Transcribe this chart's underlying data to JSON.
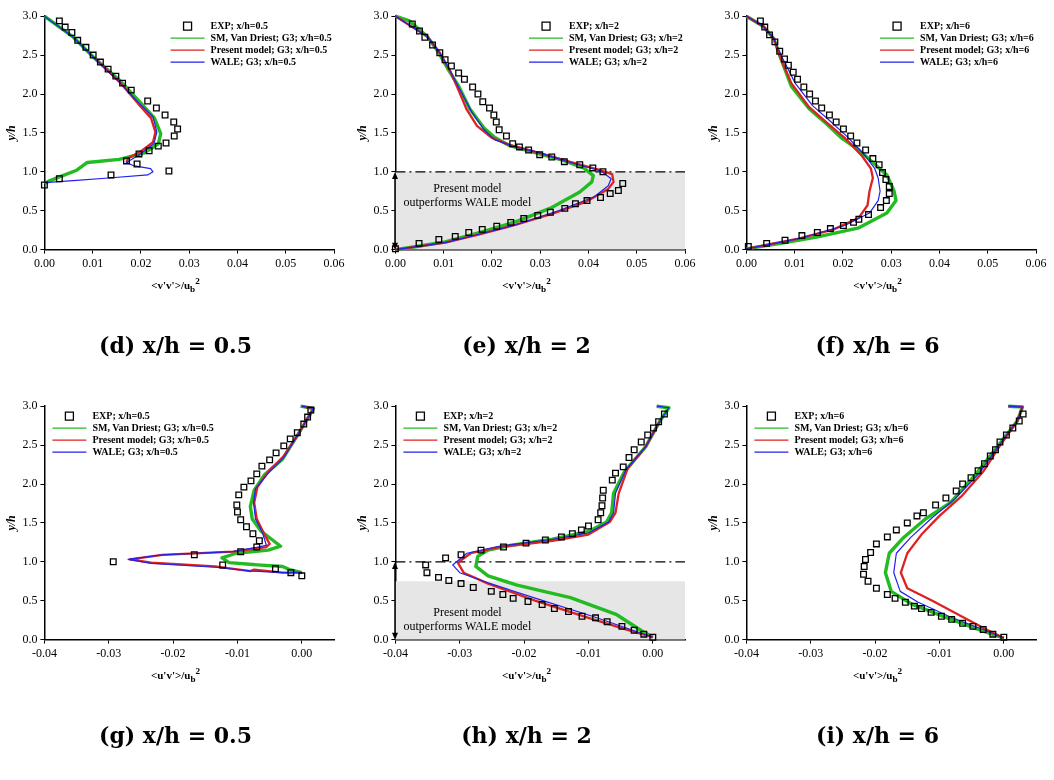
{
  "chart_data": [
    {
      "type": "line",
      "title": "(d) x/h = 0.5",
      "xlabel": "<v'v'>/u$_{b}$$^{2}$",
      "ylabel": "y/h",
      "xlim": [
        0,
        0.06
      ],
      "xticks": [
        {
          "value": 0,
          "label": "0.00"
        },
        {
          "value": 0.01,
          "label": "0.01"
        },
        {
          "value": 0.02,
          "label": "0.02"
        },
        {
          "value": 0.03,
          "label": "0.03"
        },
        {
          "value": 0.04,
          "label": "0.04"
        },
        {
          "value": 0.05,
          "label": "0.05"
        },
        {
          "value": 0.06,
          "label": "0.06"
        }
      ],
      "ylim": [
        0,
        3
      ],
      "yticks": [
        {
          "value": 0,
          "label": "0.0"
        },
        {
          "value": 0.5,
          "label": "0.5"
        },
        {
          "value": 1,
          "label": "1.0"
        },
        {
          "value": 1.5,
          "label": "1.5"
        },
        {
          "value": 2,
          "label": "2.0"
        },
        {
          "value": 2.5,
          "label": "2.5"
        },
        {
          "value": 3,
          "label": "3.0"
        }
      ],
      "legend": "top right",
      "series": [
        {
          "name": "EXP; x/h=0.5",
          "type": "scatter",
          "marker": "square",
          "color": "#000000",
          "x": [
            0.0031,
            0.0043,
            0.0057,
            0.0069,
            0.0086,
            0.0101,
            0.0116,
            0.0132,
            0.0148,
            0.0162,
            0.018,
            0.0214,
            0.0232,
            0.025,
            0.0268,
            0.0276,
            0.0269,
            0.0252,
            0.0236,
            0.0217,
            0.0196,
            0.017,
            0.0192,
            0.0258,
            0.0138,
            0.0031,
            0
          ],
          "values": [
            2.94,
            2.86,
            2.79,
            2.69,
            2.6,
            2.5,
            2.41,
            2.32,
            2.23,
            2.14,
            2.05,
            1.91,
            1.82,
            1.73,
            1.64,
            1.55,
            1.46,
            1.37,
            1.33,
            1.27,
            1.23,
            1.14,
            1.1,
            1.01,
            0.96,
            0.91,
            0.83
          ]
        },
        {
          "name": "SM, Van Driest; G3; x/h=0.5",
          "color": "#22bb22",
          "x": [
            0,
            0.006,
            0.0104,
            0.0155,
            0.0199,
            0.0228,
            0.0241,
            0.0236,
            0.0206,
            0.0155,
            0.0089,
            0.0067,
            0.0038,
            0.0009,
            0
          ],
          "values": [
            3,
            2.73,
            2.46,
            2.18,
            1.89,
            1.69,
            1.49,
            1.36,
            1.24,
            1.16,
            1.12,
            1.02,
            0.95,
            0.88,
            0.85
          ]
        },
        {
          "name": "Present model; G3; x/h=0.5",
          "color": "#dd2222",
          "x": [
            0.0104,
            0.0155,
            0.0195,
            0.0221,
            0.023,
            0.0225,
            0.0199,
            0.0173,
            0.017
          ],
          "values": [
            2.46,
            2.16,
            1.87,
            1.69,
            1.51,
            1.38,
            1.26,
            1.17,
            1.12
          ]
        },
        {
          "name": "WALE; G3; x/h=0.5",
          "color": "#2222ee",
          "x": [
            0,
            0.006,
            0.0104,
            0.0154,
            0.0195,
            0.0225,
            0.0233,
            0.0227,
            0.0192,
            0.017,
            0.0184,
            0.022,
            0.0225,
            0.0214,
            0.0133,
            0.0067,
            0.0023,
            0
          ],
          "values": [
            3,
            2.73,
            2.46,
            2.16,
            1.89,
            1.71,
            1.51,
            1.36,
            1.2,
            1.12,
            1.08,
            1.04,
            1,
            0.96,
            0.92,
            0.89,
            0.87,
            0.86
          ]
        }
      ]
    },
    {
      "type": "line",
      "title": "(e) x/h = 2",
      "xlabel": "<v'v'>/u$_{b}$$^{2}$",
      "ylabel": "y/h",
      "xlim": [
        0,
        0.06
      ],
      "xticks": [
        {
          "value": 0,
          "label": "0.00"
        },
        {
          "value": 0.01,
          "label": "0.01"
        },
        {
          "value": 0.02,
          "label": "0.02"
        },
        {
          "value": 0.03,
          "label": "0.03"
        },
        {
          "value": 0.04,
          "label": "0.04"
        },
        {
          "value": 0.05,
          "label": "0.05"
        },
        {
          "value": 0.06,
          "label": "0.06"
        }
      ],
      "ylim": [
        0,
        3
      ],
      "yticks": [
        {
          "value": 0,
          "label": "0.0"
        },
        {
          "value": 0.5,
          "label": "0.5"
        },
        {
          "value": 1,
          "label": "1.0"
        },
        {
          "value": 1.5,
          "label": "1.5"
        },
        {
          "value": 2,
          "label": "2.0"
        },
        {
          "value": 2.5,
          "label": "2.5"
        },
        {
          "value": 3,
          "label": "3.0"
        }
      ],
      "legend": "top right",
      "ref_lines": [
        {
          "axis": "y",
          "value": 1,
          "color": "#000000",
          "line_style": "dashed"
        }
      ],
      "bands": [
        {
          "axis": "y",
          "from": 0,
          "to": 1,
          "label": "Present model outperforms WALE model",
          "color": "#e6e6e6"
        }
      ],
      "series": [
        {
          "name": "EXP; x/h=2",
          "type": "scatter",
          "marker": "square",
          "color": "#000000",
          "x": [
            0.0035,
            0.005,
            0.0061,
            0.0077,
            0.0092,
            0.0103,
            0.0116,
            0.0131,
            0.0143,
            0.016,
            0.0171,
            0.0181,
            0.0195,
            0.0204,
            0.0209,
            0.0215,
            0.023,
            0.0243,
            0.0257,
            0.0276,
            0.0299,
            0.0324,
            0.035,
            0.0382,
            0.0409,
            0.043,
            0.0471,
            0.0462,
            0.0445,
            0.0425,
            0.0397,
            0.0373,
            0.0351,
            0.0321,
            0.0295,
            0.0266,
            0.0239,
            0.021,
            0.018,
            0.0152,
            0.0124,
            0.009,
            0.0049,
            0
          ],
          "values": [
            2.9,
            2.81,
            2.73,
            2.63,
            2.53,
            2.44,
            2.36,
            2.27,
            2.19,
            2.09,
            2,
            1.9,
            1.82,
            1.73,
            1.64,
            1.54,
            1.46,
            1.36,
            1.32,
            1.28,
            1.22,
            1.19,
            1.13,
            1.09,
            1.05,
            1,
            0.85,
            0.76,
            0.72,
            0.67,
            0.63,
            0.59,
            0.53,
            0.48,
            0.44,
            0.4,
            0.35,
            0.3,
            0.26,
            0.22,
            0.17,
            0.13,
            0.08,
            0.01
          ]
        },
        {
          "name": "SM, Van Driest; G3; x/h=2",
          "color": "#22bb22",
          "x": [
            0,
            0.0029,
            0.0066,
            0.0088,
            0.011,
            0.0132,
            0.0154,
            0.0184,
            0.0206,
            0.0235,
            0.0287,
            0.0346,
            0.039,
            0.041,
            0.0407,
            0.0382,
            0.0324,
            0.025,
            0.0176,
            0.0103,
            0.0044,
            0
          ],
          "values": [
            3,
            2.94,
            2.74,
            2.55,
            2.31,
            2.09,
            1.81,
            1.56,
            1.44,
            1.34,
            1.25,
            1.15,
            1.05,
            0.95,
            0.87,
            0.74,
            0.54,
            0.36,
            0.22,
            0.1,
            0.04,
            0
          ]
        },
        {
          "name": "Present model; G3; x/h=2",
          "color": "#dd2222",
          "x": [
            0,
            0.0066,
            0.0092,
            0.0114,
            0.0132,
            0.0147,
            0.0169,
            0.0199,
            0.0235,
            0.0294,
            0.036,
            0.0419,
            0.0449,
            0.0452,
            0.0441,
            0.0397,
            0.0324,
            0.025,
            0.0176,
            0.0103,
            0
          ],
          "values": [
            3,
            2.74,
            2.53,
            2.29,
            2.03,
            1.81,
            1.59,
            1.44,
            1.35,
            1.25,
            1.13,
            1.03,
            0.97,
            0.87,
            0.78,
            0.62,
            0.46,
            0.32,
            0.2,
            0.09,
            0
          ]
        },
        {
          "name": "WALE; G3; x/h=2",
          "color": "#2222ee",
          "x": [
            0,
            0.0066,
            0.0092,
            0.0114,
            0.0136,
            0.0158,
            0.0184,
            0.0206,
            0.0243,
            0.0301,
            0.0368,
            0.0426,
            0.0447,
            0.0441,
            0.0412,
            0.0338,
            0.025,
            0.0176,
            0.0103,
            0
          ],
          "values": [
            3,
            2.74,
            2.53,
            2.29,
            2.03,
            1.77,
            1.54,
            1.41,
            1.33,
            1.24,
            1.11,
            1.01,
            0.91,
            0.82,
            0.68,
            0.5,
            0.32,
            0.2,
            0.09,
            0
          ]
        }
      ]
    },
    {
      "type": "line",
      "title": "(f) x/h = 6",
      "xlabel": "<v'v'>/u$_{b}$$^{2}$",
      "ylabel": "y/h",
      "xlim": [
        0,
        0.06
      ],
      "xticks": [
        {
          "value": 0,
          "label": "0.00"
        },
        {
          "value": 0.01,
          "label": "0.01"
        },
        {
          "value": 0.02,
          "label": "0.02"
        },
        {
          "value": 0.03,
          "label": "0.03"
        },
        {
          "value": 0.04,
          "label": "0.04"
        },
        {
          "value": 0.05,
          "label": "0.05"
        },
        {
          "value": 0.06,
          "label": "0.06"
        }
      ],
      "ylim": [
        0,
        3
      ],
      "yticks": [
        {
          "value": 0,
          "label": "0.0"
        },
        {
          "value": 0.5,
          "label": "0.5"
        },
        {
          "value": 1,
          "label": "1.0"
        },
        {
          "value": 1.5,
          "label": "1.5"
        },
        {
          "value": 2,
          "label": "2.0"
        },
        {
          "value": 2.5,
          "label": "2.5"
        },
        {
          "value": 3,
          "label": "3.0"
        }
      ],
      "legend": "top right",
      "series": [
        {
          "name": "EXP; x/h=6",
          "type": "scatter",
          "marker": "square",
          "color": "#000000",
          "x": [
            0.0029,
            0.0038,
            0.0048,
            0.0059,
            0.0069,
            0.0079,
            0.0087,
            0.0097,
            0.0106,
            0.0119,
            0.0131,
            0.0143,
            0.0156,
            0.0172,
            0.0186,
            0.0201,
            0.0216,
            0.0229,
            0.0247,
            0.0262,
            0.0275,
            0.0282,
            0.0289,
            0.0296,
            0.0296,
            0.029,
            0.0278,
            0.0253,
            0.0233,
            0.0222,
            0.0201,
            0.0174,
            0.0147,
            0.0115,
            0.008,
            0.0042,
            0.0004
          ],
          "values": [
            2.94,
            2.86,
            2.76,
            2.67,
            2.55,
            2.45,
            2.37,
            2.28,
            2.19,
            2.09,
            2,
            1.91,
            1.82,
            1.73,
            1.64,
            1.55,
            1.46,
            1.37,
            1.28,
            1.17,
            1.09,
            0.99,
            0.9,
            0.81,
            0.72,
            0.63,
            0.54,
            0.45,
            0.39,
            0.35,
            0.31,
            0.27,
            0.22,
            0.18,
            0.12,
            0.08,
            0.04
          ]
        },
        {
          "name": "SM, Van Driest; G3; x/h=6",
          "color": "#22bb22",
          "x": [
            0,
            0.0035,
            0.0057,
            0.0071,
            0.0093,
            0.013,
            0.0167,
            0.0196,
            0.0233,
            0.0262,
            0.0291,
            0.0306,
            0.031,
            0.0291,
            0.0233,
            0.0145,
            0.0071,
            0
          ],
          "values": [
            3,
            2.87,
            2.71,
            2.46,
            2.1,
            1.81,
            1.61,
            1.44,
            1.28,
            1.12,
            0.96,
            0.75,
            0.63,
            0.47,
            0.28,
            0.16,
            0.08,
            0.01
          ]
        },
        {
          "name": "Present model; G3; x/h=6",
          "color": "#dd2222",
          "x": [
            0,
            0.0035,
            0.0057,
            0.0071,
            0.0093,
            0.013,
            0.0167,
            0.0203,
            0.024,
            0.0258,
            0.0262,
            0.0255,
            0.0251,
            0.0233,
            0.0181,
            0.0108,
            0
          ],
          "values": [
            3,
            2.87,
            2.71,
            2.46,
            2.14,
            1.83,
            1.63,
            1.44,
            1.2,
            1.04,
            0.92,
            0.75,
            0.57,
            0.41,
            0.26,
            0.14,
            0.01
          ]
        },
        {
          "name": "WALE; G3; x/h=6",
          "color": "#2222ee",
          "x": [
            0,
            0.0035,
            0.0057,
            0.0075,
            0.0101,
            0.0137,
            0.0174,
            0.0211,
            0.0247,
            0.0266,
            0.0273,
            0.0277,
            0.0273,
            0.0255,
            0.0204,
            0.0108,
            0
          ],
          "values": [
            3,
            2.87,
            2.71,
            2.46,
            2.14,
            1.85,
            1.65,
            1.44,
            1.2,
            1.04,
            0.92,
            0.75,
            0.63,
            0.47,
            0.31,
            0.14,
            0.01
          ]
        }
      ]
    },
    {
      "type": "line",
      "title": "(g) x/h = 0.5",
      "xlabel": "<u'v'>/u$_{b}$$^{2}$",
      "ylabel": "y/h",
      "xlim": [
        -0.04,
        0.005
      ],
      "xticks": [
        {
          "value": -0.04,
          "label": "-0.04"
        },
        {
          "value": -0.03,
          "label": "-0.03"
        },
        {
          "value": -0.02,
          "label": "-0.02"
        },
        {
          "value": -0.01,
          "label": "-0.01"
        },
        {
          "value": 0,
          "label": "0.00"
        }
      ],
      "ylim": [
        0,
        3
      ],
      "yticks": [
        {
          "value": 0,
          "label": "0.0"
        },
        {
          "value": 0.5,
          "label": "0.5"
        },
        {
          "value": 1,
          "label": "1.0"
        },
        {
          "value": 1.5,
          "label": "1.5"
        },
        {
          "value": 2,
          "label": "2.0"
        },
        {
          "value": 2.5,
          "label": "2.5"
        },
        {
          "value": 3,
          "label": "3.0"
        }
      ],
      "legend": "top left",
      "series": [
        {
          "name": "EXP; x/h=0.5",
          "type": "scatter",
          "marker": "square",
          "color": "#000000",
          "x": [
            0.0014,
            0.0009,
            0.0003,
            -0.0007,
            -0.0018,
            -0.0028,
            -0.004,
            -0.005,
            -0.0062,
            -0.007,
            -0.0079,
            -0.009,
            -0.0098,
            -0.0101,
            -0.01,
            -0.0095,
            -0.0086,
            -0.0076,
            -0.0066,
            -0.007,
            -0.0095,
            -0.0167,
            -0.0293,
            -0.0123,
            -0.0041,
            -0.0017,
            0
          ],
          "values": [
            2.95,
            2.86,
            2.77,
            2.66,
            2.58,
            2.49,
            2.4,
            2.31,
            2.23,
            2.13,
            2.04,
            1.96,
            1.86,
            1.73,
            1.64,
            1.54,
            1.45,
            1.36,
            1.27,
            1.19,
            1.13,
            1.09,
            1,
            0.96,
            0.91,
            0.86,
            0.82
          ]
        },
        {
          "name": "SM, Van Driest; G3; x/h=0.5",
          "color": "#22bb22",
          "x": [
            -0.0002,
            0.0018,
            0.0014,
            -0.0008,
            -0.003,
            -0.0058,
            -0.0074,
            -0.008,
            -0.0077,
            -0.0063,
            -0.0047,
            -0.0033,
            -0.0052,
            -0.0102,
            -0.0124,
            -0.0113,
            -0.0069,
            -0.003,
            -0.0019,
            0
          ],
          "values": [
            3,
            2.97,
            2.91,
            2.61,
            2.32,
            2.12,
            1.92,
            1.71,
            1.55,
            1.39,
            1.29,
            1.2,
            1.15,
            1.11,
            1.05,
            0.99,
            0.96,
            0.94,
            0.9,
            0.86
          ]
        },
        {
          "name": "Present model; G3; x/h=0.5",
          "color": "#dd2222",
          "x": [
            0,
            0.0018,
            -0.0008,
            -0.0028,
            -0.0052,
            -0.0069,
            -0.0074,
            -0.007,
            -0.0058,
            -0.005,
            -0.0055,
            -0.0107,
            -0.0217,
            -0.0267,
            -0.0234,
            -0.0135,
            -0.008,
            -0.0074,
            -0.003,
            0
          ],
          "values": [
            3,
            2.97,
            2.61,
            2.36,
            2.16,
            1.96,
            1.76,
            1.55,
            1.35,
            1.23,
            1.19,
            1.13,
            1.09,
            1.03,
            0.99,
            0.94,
            0.88,
            0.9,
            0.86,
            0.86
          ]
        },
        {
          "name": "WALE; G3; x/h=0.5",
          "color": "#2222ee",
          "x": [
            0,
            0.0018,
            -0.0008,
            -0.0028,
            -0.0052,
            -0.0072,
            -0.0075,
            -0.0072,
            -0.0061,
            -0.0055,
            -0.0107,
            -0.0217,
            -0.027,
            -0.0234,
            -0.0135,
            -0.0077,
            -0.003,
            0
          ],
          "values": [
            3,
            2.97,
            2.61,
            2.34,
            2.14,
            1.94,
            1.76,
            1.55,
            1.37,
            1.21,
            1.13,
            1.09,
            1.03,
            0.98,
            0.93,
            0.88,
            0.86,
            0.86
          ]
        }
      ]
    },
    {
      "type": "line",
      "title": "(h) x/h = 2",
      "xlabel": "<u'v'>/u$_{b}$$^{2}$",
      "ylabel": "y/h",
      "xlim": [
        -0.04,
        0.005
      ],
      "xticks": [
        {
          "value": -0.04,
          "label": "-0.04"
        },
        {
          "value": -0.03,
          "label": "-0.03"
        },
        {
          "value": -0.02,
          "label": "-0.02"
        },
        {
          "value": -0.01,
          "label": "-0.01"
        },
        {
          "value": 0,
          "label": "0.00"
        }
      ],
      "ylim": [
        0,
        3
      ],
      "yticks": [
        {
          "value": 0,
          "label": "0.0"
        },
        {
          "value": 0.5,
          "label": "0.5"
        },
        {
          "value": 1,
          "label": "1.0"
        },
        {
          "value": 1.5,
          "label": "1.5"
        },
        {
          "value": 2,
          "label": "2.0"
        },
        {
          "value": 2.5,
          "label": "2.5"
        },
        {
          "value": 3,
          "label": "3.0"
        }
      ],
      "legend": "top left",
      "ref_lines": [
        {
          "axis": "y",
          "value": 1,
          "color": "#000000",
          "line_style": "dashed"
        }
      ],
      "bands": [
        {
          "axis": "y",
          "from": 0,
          "to": 0.75,
          "label": "Present model outperforms WALE model",
          "color": "#e6e6e6"
        }
      ],
      "series": [
        {
          "name": "EXP; x/h=2",
          "type": "scatter",
          "marker": "square",
          "color": "#000000",
          "x": [
            0.0018,
            0.0009,
            0.0001,
            -0.0008,
            -0.0018,
            -0.0029,
            -0.0037,
            -0.0046,
            -0.0058,
            -0.0063,
            -0.0077,
            -0.0078,
            -0.0079,
            -0.0081,
            -0.0085,
            -0.01,
            -0.0111,
            -0.0125,
            -0.0142,
            -0.0167,
            -0.0197,
            -0.0232,
            -0.0267,
            -0.0298,
            -0.0322,
            -0.0353,
            -0.0351,
            -0.0333,
            -0.0317,
            -0.0298,
            -0.0279,
            -0.0251,
            -0.0233,
            -0.0217,
            -0.0194,
            -0.0172,
            -0.0153,
            -0.0131,
            -0.011,
            -0.0089,
            -0.0071,
            -0.0048,
            -0.0029,
            -0.0014,
            0
          ],
          "values": [
            2.9,
            2.8,
            2.72,
            2.63,
            2.54,
            2.44,
            2.34,
            2.22,
            2.14,
            2.05,
            1.92,
            1.82,
            1.72,
            1.63,
            1.54,
            1.46,
            1.41,
            1.36,
            1.32,
            1.28,
            1.24,
            1.19,
            1.15,
            1.09,
            1.05,
            0.96,
            0.86,
            0.8,
            0.76,
            0.72,
            0.67,
            0.62,
            0.58,
            0.53,
            0.49,
            0.45,
            0.4,
            0.36,
            0.3,
            0.28,
            0.23,
            0.17,
            0.12,
            0.07,
            0.03
          ]
        },
        {
          "name": "SM, Van Driest; G3; x/h=2",
          "color": "#22bb22",
          "x": [
            0.0006,
            0.0025,
            0.0011,
            -0.0011,
            -0.0044,
            -0.0061,
            -0.0064,
            -0.0072,
            -0.01,
            -0.0156,
            -0.0222,
            -0.0256,
            -0.0272,
            -0.0275,
            -0.0256,
            -0.0211,
            -0.0128,
            -0.0056,
            -0.0017,
            0
          ],
          "values": [
            3,
            2.98,
            2.81,
            2.48,
            2.16,
            1.88,
            1.63,
            1.51,
            1.39,
            1.29,
            1.21,
            1.15,
            1.07,
            0.94,
            0.82,
            0.7,
            0.54,
            0.32,
            0.11,
            0.03
          ]
        },
        {
          "name": "Present model; G3; x/h=2",
          "color": "#dd2222",
          "x": [
            0.0011,
            -0.0011,
            -0.0039,
            -0.0053,
            -0.0058,
            -0.0067,
            -0.01,
            -0.0156,
            -0.0239,
            -0.0283,
            -0.0303,
            -0.0294,
            -0.0256,
            -0.0183,
            -0.01,
            -0.0033,
            0
          ],
          "values": [
            2.81,
            2.48,
            2.2,
            1.88,
            1.63,
            1.51,
            1.35,
            1.27,
            1.19,
            1.11,
            0.99,
            0.86,
            0.72,
            0.5,
            0.28,
            0.11,
            0.03
          ]
        },
        {
          "name": "WALE; G3; x/h=2",
          "color": "#2222ee",
          "x": [
            0.0006,
            0.0025,
            0.0011,
            -0.0011,
            -0.0042,
            -0.0058,
            -0.0061,
            -0.0069,
            -0.01,
            -0.0156,
            -0.0239,
            -0.0289,
            -0.0311,
            -0.03,
            -0.0256,
            -0.0178,
            -0.0094,
            -0.0031,
            0
          ],
          "values": [
            3,
            2.98,
            2.81,
            2.48,
            2.18,
            1.88,
            1.63,
            1.51,
            1.37,
            1.29,
            1.2,
            1.11,
            0.96,
            0.86,
            0.73,
            0.52,
            0.3,
            0.12,
            0.03
          ]
        }
      ]
    },
    {
      "type": "line",
      "title": "(i) x/h = 6",
      "xlabel": "<u'v'>/u$_{b}$$^{2}$",
      "ylabel": "y/h",
      "xlim": [
        -0.04,
        0.005
      ],
      "xticks": [
        {
          "value": -0.04,
          "label": "-0.04"
        },
        {
          "value": -0.03,
          "label": "-0.03"
        },
        {
          "value": -0.02,
          "label": "-0.02"
        },
        {
          "value": -0.01,
          "label": "-0.01"
        },
        {
          "value": 0,
          "label": "0.00"
        }
      ],
      "ylim": [
        0,
        3
      ],
      "yticks": [
        {
          "value": 0,
          "label": "0.0"
        },
        {
          "value": 0.5,
          "label": "0.5"
        },
        {
          "value": 1,
          "label": "1.0"
        },
        {
          "value": 1.5,
          "label": "1.5"
        },
        {
          "value": 2,
          "label": "2.0"
        },
        {
          "value": 2.5,
          "label": "2.5"
        },
        {
          "value": 3,
          "label": "3.0"
        }
      ],
      "legend": "top left",
      "series": [
        {
          "name": "EXP; x/h=6",
          "type": "scatter",
          "marker": "square",
          "color": "#000000",
          "x": [
            0.003,
            0.0024,
            0.0014,
            0.0004,
            -0.0006,
            -0.0013,
            -0.0021,
            -0.003,
            -0.004,
            -0.0051,
            -0.0064,
            -0.0074,
            -0.009,
            -0.0106,
            -0.0125,
            -0.0135,
            -0.015,
            -0.0167,
            -0.0181,
            -0.0198,
            -0.0207,
            -0.0215,
            -0.0217,
            -0.0218,
            -0.0211,
            -0.0198,
            -0.0181,
            -0.0169,
            -0.0153,
            -0.0139,
            -0.0128,
            -0.0113,
            -0.0097,
            -0.0081,
            -0.0064,
            -0.0048,
            -0.0032,
            -0.0017,
            0
          ],
          "values": [
            2.9,
            2.81,
            2.72,
            2.63,
            2.54,
            2.44,
            2.36,
            2.26,
            2.17,
            2.08,
            2,
            1.91,
            1.82,
            1.73,
            1.63,
            1.59,
            1.5,
            1.41,
            1.32,
            1.23,
            1.12,
            1.03,
            0.94,
            0.84,
            0.75,
            0.66,
            0.58,
            0.53,
            0.48,
            0.43,
            0.4,
            0.35,
            0.3,
            0.26,
            0.21,
            0.17,
            0.13,
            0.07,
            0.03
          ]
        },
        {
          "name": "SM, Van Driest; G3; x/h=6",
          "color": "#22bb22",
          "x": [
            0.0007,
            0.0029,
            0.0021,
            -0.001,
            -0.0044,
            -0.0083,
            -0.0122,
            -0.0156,
            -0.0178,
            -0.0184,
            -0.0175,
            -0.0144,
            -0.0088,
            -0.0032,
            0
          ],
          "values": [
            3,
            2.99,
            2.81,
            2.48,
            2.12,
            1.76,
            1.55,
            1.31,
            1.11,
            0.86,
            0.62,
            0.46,
            0.28,
            0.11,
            0.02
          ]
        },
        {
          "name": "Present model; G3; x/h=6",
          "color": "#dd2222",
          "x": [
            0.0007,
            0.0029,
            0.0021,
            -0.0007,
            -0.0032,
            -0.0066,
            -0.01,
            -0.0128,
            -0.015,
            -0.016,
            -0.015,
            -0.0111,
            -0.0066,
            -0.0027,
            0
          ],
          "values": [
            3,
            2.99,
            2.81,
            2.48,
            2.16,
            1.84,
            1.59,
            1.35,
            1.11,
            0.86,
            0.66,
            0.5,
            0.3,
            0.13,
            0.02
          ]
        },
        {
          "name": "WALE; G3; x/h=6",
          "color": "#2222ee",
          "x": [
            0.0007,
            0.0029,
            0.0021,
            -0.0009,
            -0.0038,
            -0.0077,
            -0.0111,
            -0.0145,
            -0.0167,
            -0.0171,
            -0.0161,
            -0.0133,
            -0.0083,
            -0.0032,
            0
          ],
          "values": [
            3,
            2.99,
            2.81,
            2.48,
            2.14,
            1.8,
            1.57,
            1.31,
            1.11,
            0.86,
            0.62,
            0.48,
            0.29,
            0.13,
            0.02
          ]
        }
      ]
    }
  ]
}
